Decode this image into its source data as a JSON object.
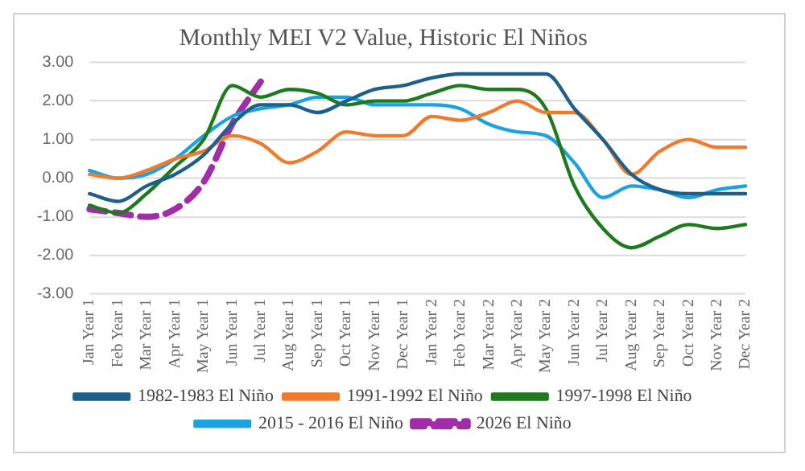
{
  "chart_data": {
    "type": "line",
    "title": "Monthly MEI V2 Value, Historic El Niños",
    "categories": [
      "Jan Year 1",
      "Feb Year 1",
      "Mar Year 1",
      "Apr Year 1",
      "May Year 1",
      "Jun Year 1",
      "Jul Year 1",
      "Aug Year 1",
      "Sep Year 1",
      "Oct Year 1",
      "Nov Year 1",
      "Dec Year 1",
      "Jan Year 2",
      "Feb Year 2",
      "Mar Year 2",
      "Apr Year 2",
      "May Year 2",
      "Jun Year 2",
      "Jul Year 2",
      "Aug Year 2",
      "Sep Year 2",
      "Oct Year 2",
      "Nov Year 2",
      "Dec Year 2"
    ],
    "series": [
      {
        "name": "1982-1983 El Niño",
        "color": "#1f5f8b",
        "values": [
          -0.4,
          -0.6,
          -0.2,
          0.1,
          0.6,
          1.4,
          1.9,
          1.9,
          1.7,
          2.0,
          2.3,
          2.4,
          2.6,
          2.7,
          2.7,
          2.7,
          2.7,
          1.8,
          1.0,
          0.1,
          -0.3,
          -0.4,
          -0.4,
          -0.4
        ]
      },
      {
        "name": "1991-1992 El Niño",
        "color": "#f07b2c",
        "values": [
          0.1,
          0.0,
          0.2,
          0.5,
          0.7,
          1.1,
          0.9,
          0.4,
          0.7,
          1.2,
          1.1,
          1.1,
          1.6,
          1.5,
          1.7,
          2.0,
          1.7,
          1.7,
          1.0,
          0.1,
          0.7,
          1.0,
          0.8,
          0.8
        ]
      },
      {
        "name": "1997-1998 El Niño",
        "color": "#1e7a1e",
        "values": [
          -0.7,
          -0.9,
          -0.4,
          0.3,
          1.0,
          2.4,
          2.1,
          2.3,
          2.2,
          1.9,
          2.0,
          2.0,
          2.2,
          2.4,
          2.3,
          2.3,
          1.8,
          -0.2,
          -1.3,
          -1.8,
          -1.5,
          -1.2,
          -1.3,
          -1.2
        ]
      },
      {
        "name": "2015 - 2016 El Niño",
        "color": "#1aa3e0",
        "values": [
          0.2,
          0.0,
          0.1,
          0.5,
          1.1,
          1.6,
          1.8,
          1.9,
          2.1,
          2.1,
          1.9,
          1.9,
          1.9,
          1.8,
          1.4,
          1.2,
          1.1,
          0.4,
          -0.5,
          -0.2,
          -0.3,
          -0.5,
          -0.3,
          -0.2
        ]
      },
      {
        "name": "2026 El Niño",
        "color": "#a02ea8",
        "line_style": "dashed",
        "values": [
          -0.8,
          -0.9,
          -1.0,
          -0.8,
          -0.1,
          1.4,
          2.5,
          null,
          null,
          null,
          null,
          null,
          null,
          null,
          null,
          null,
          null,
          null,
          null,
          null,
          null,
          null,
          null,
          null
        ]
      }
    ],
    "ylim": [
      -3,
      3
    ],
    "yticks": [
      {
        "value": -3,
        "label": "-3.00"
      },
      {
        "value": -2,
        "label": "-2.00"
      },
      {
        "value": -1,
        "label": "-1.00"
      },
      {
        "value": 0,
        "label": "0.00"
      },
      {
        "value": 1,
        "label": "1.00"
      },
      {
        "value": 2,
        "label": "2.00"
      },
      {
        "value": 3,
        "label": "3.00"
      }
    ],
    "grid": "y",
    "legend": "bottom",
    "marker": "none"
  }
}
